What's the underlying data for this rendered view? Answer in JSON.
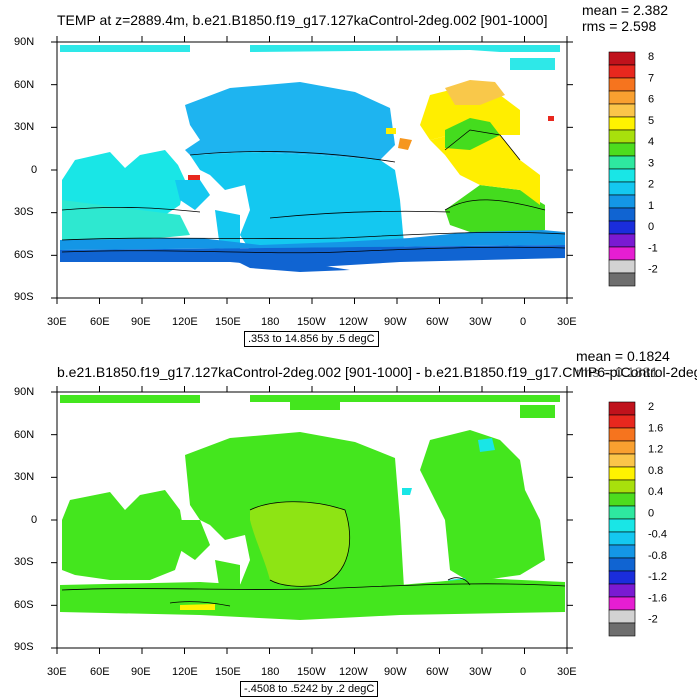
{
  "panels": [
    {
      "title": "TEMP at z=2889.4m, b.e21.B1850.f19_g17.127kaControl-2deg.002 [901-1000]",
      "mean": "mean = 2.382",
      "rms": "rms = 2.598",
      "range_label": ".353 to 14.856 by .5 degC",
      "colorbar": {
        "labels": [
          "8",
          "7",
          "6",
          "5",
          "4",
          "3",
          "2",
          "1",
          "0",
          "-1",
          "-2"
        ],
        "colors": [
          "#c0121c",
          "#e8281e",
          "#f6741e",
          "#f9a030",
          "#fbc54a",
          "#fff200",
          "#a8e00c",
          "#4ddc1e",
          "#2ee8a0",
          "#19e6e6",
          "#14c8f0",
          "#1496e6",
          "#1064d2",
          "#1a2ddc",
          "#7a1ad2",
          "#e61ed2",
          "#d2d2d2",
          "#6e6e6e"
        ]
      },
      "lat_labels": [
        "90N",
        "60N",
        "30N",
        "0",
        "30S",
        "60S",
        "90S"
      ],
      "lon_labels": [
        "30E",
        "60E",
        "90E",
        "120E",
        "150E",
        "180",
        "150W",
        "120W",
        "90W",
        "60W",
        "30W",
        "0",
        "30E"
      ]
    },
    {
      "title": "b.e21.B1850.f19_g17.127kaControl-2deg.002 [901-1000] - b.e21.B1850.f19_g17.CMIP6-piControl-2deg",
      "mean": "mean = 0.1824",
      "rms": "rms = 0.1881",
      "range_label": "-.4508 to .5242 by .2 degC",
      "colorbar": {
        "labels": [
          "2",
          "1.6",
          "1.2",
          "0.8",
          "0.4",
          "0",
          "-0.4",
          "-0.8",
          "-1.2",
          "-1.6",
          "-2"
        ],
        "colors": [
          "#c0121c",
          "#e8281e",
          "#f6741e",
          "#f9a030",
          "#fbc54a",
          "#fff200",
          "#a8e00c",
          "#4ddc1e",
          "#2ee8a0",
          "#19e6e6",
          "#14c8f0",
          "#1496e6",
          "#1064d2",
          "#1a2ddc",
          "#7a1ad2",
          "#e61ed2",
          "#d2d2d2",
          "#6e6e6e"
        ]
      },
      "lat_labels": [
        "90N",
        "60N",
        "30N",
        "0",
        "30S",
        "60S",
        "90S"
      ],
      "lon_labels": [
        "30E",
        "60E",
        "90E",
        "120E",
        "150E",
        "180",
        "150W",
        "120W",
        "90W",
        "60W",
        "30W",
        "0",
        "30E"
      ]
    }
  ],
  "fill_colors": {
    "cyan": "#2ee8e8",
    "aqua": "#19e6c8",
    "sky": "#1eb4f0",
    "blue": "#1496e6",
    "deep_blue": "#1064d2",
    "green": "#44dc1e",
    "lime": "#8ee40a",
    "yellow": "#ffee00",
    "light_orange": "#f9c84a",
    "orange": "#f6961e",
    "red": "#e8281e",
    "diff_green": "#44e61e",
    "diff_lime": "#8ee414",
    "diff_cyan": "#19e6e6"
  }
}
